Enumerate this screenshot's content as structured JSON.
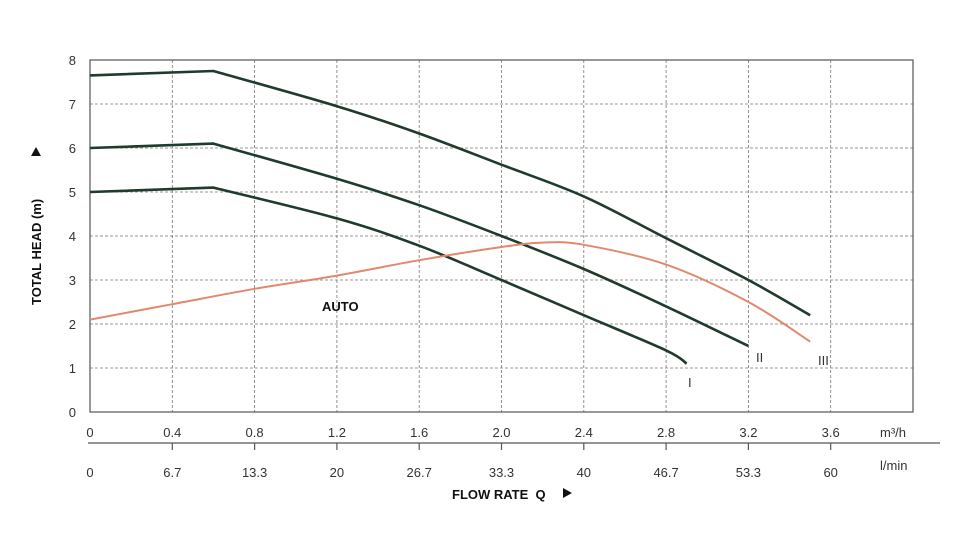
{
  "chart_data": {
    "type": "line",
    "title": "",
    "xlabel": "FLOW RATE  Q",
    "ylabel": "TOTAL HEAD (m)",
    "xlim": [
      0,
      4.0
    ],
    "ylim": [
      0,
      8
    ],
    "grid": true,
    "x_unit_primary": "m³/h",
    "x_unit_secondary": "l/min",
    "xticks": [
      "0",
      "0.4",
      "0.8",
      "1.2",
      "1.6",
      "2.0",
      "2.4",
      "2.8",
      "3.2",
      "3.6"
    ],
    "xticks_secondary": [
      "0",
      "6.7",
      "13.3",
      "20",
      "26.7",
      "33.3",
      "40",
      "46.7",
      "53.3",
      "60"
    ],
    "yticks": [
      "0",
      "1",
      "2",
      "3",
      "4",
      "5",
      "6",
      "7",
      "8"
    ],
    "series": [
      {
        "name": "III",
        "color": "#1e3b2b",
        "x": [
          0,
          0.6,
          1.2,
          1.6,
          2.0,
          2.4,
          2.8,
          3.2,
          3.5
        ],
        "y": [
          7.65,
          7.75,
          6.95,
          6.33,
          5.62,
          4.9,
          3.95,
          3.0,
          2.2
        ]
      },
      {
        "name": "II",
        "color": "#1e3b2b",
        "x": [
          0,
          0.6,
          1.2,
          1.6,
          2.0,
          2.4,
          2.8,
          3.2
        ],
        "y": [
          6.0,
          6.1,
          5.3,
          4.7,
          4.0,
          3.25,
          2.4,
          1.5
        ]
      },
      {
        "name": "I",
        "color": "#1e3b2b",
        "x": [
          0,
          0.6,
          1.2,
          1.6,
          2.0,
          2.4,
          2.8,
          2.9
        ],
        "y": [
          5.0,
          5.1,
          4.4,
          3.78,
          3.0,
          2.2,
          1.4,
          1.1
        ]
      },
      {
        "name": "AUTO",
        "color": "#e0896e",
        "x": [
          0,
          0.4,
          0.8,
          1.2,
          1.6,
          2.0,
          2.2,
          2.4,
          2.8,
          3.2,
          3.5
        ],
        "y": [
          2.1,
          2.45,
          2.8,
          3.1,
          3.45,
          3.75,
          3.85,
          3.8,
          3.35,
          2.5,
          1.6
        ]
      }
    ]
  }
}
